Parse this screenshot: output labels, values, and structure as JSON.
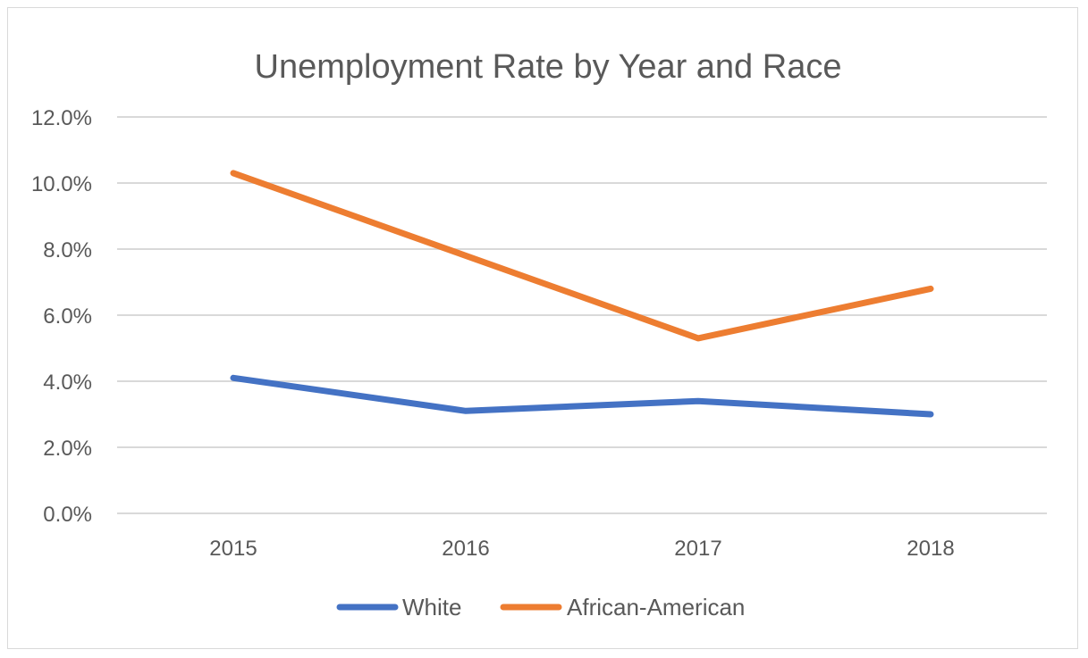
{
  "chart_data": {
    "type": "line",
    "title": "Unemployment Rate by Year and Race",
    "categories": [
      "2015",
      "2016",
      "2017",
      "2018"
    ],
    "y_ticks": [
      "0.0%",
      "2.0%",
      "4.0%",
      "6.0%",
      "8.0%",
      "10.0%",
      "12.0%"
    ],
    "ylim": [
      0,
      12
    ],
    "xlabel": "",
    "ylabel": "",
    "grid": true,
    "legend_position": "bottom",
    "series": [
      {
        "name": "White",
        "color": "#4472c4",
        "values": [
          4.1,
          3.1,
          3.4,
          3.0
        ]
      },
      {
        "name": "African-American",
        "color": "#ed7d31",
        "values": [
          10.3,
          7.8,
          5.3,
          6.8
        ]
      }
    ]
  }
}
